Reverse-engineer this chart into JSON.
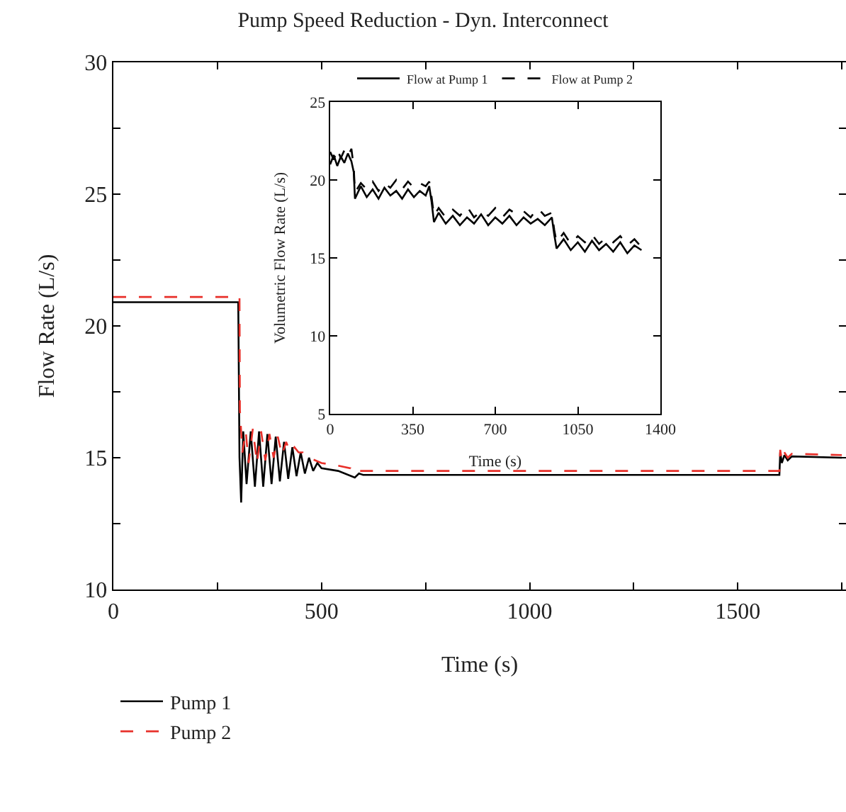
{
  "chart_data": [
    {
      "type": "line",
      "title": "Pump Speed Reduction - Dyn. Interconnect",
      "xlabel": "Time (s)",
      "ylabel": "Flow Rate (L/s)",
      "xlim": [
        0,
        1760
      ],
      "ylim": [
        10,
        30
      ],
      "xticks": [
        0,
        {
          "value": 250,
          "label": null
        },
        500,
        {
          "value": 750,
          "label": null
        },
        1000,
        {
          "value": 1250,
          "label": null
        },
        1500,
        {
          "value": 1750,
          "label": null
        }
      ],
      "yticks": [
        10,
        {
          "value": 12.5,
          "label": null
        },
        15,
        {
          "value": 17.5,
          "label": null
        },
        20,
        {
          "value": 22.5,
          "label": null
        },
        25,
        {
          "value": 27.5,
          "label": null
        },
        30
      ],
      "legend": "bottom left",
      "series": [
        {
          "name": "Pump 1",
          "color": "#000000",
          "line_style": "solid",
          "x": [
            0,
            300,
            303,
            307,
            312,
            320,
            330,
            340,
            350,
            360,
            370,
            380,
            390,
            400,
            410,
            420,
            430,
            440,
            450,
            460,
            470,
            480,
            490,
            500,
            540,
            580,
            590,
            600,
            1600,
            1602,
            1606,
            1612,
            1620,
            1630,
            1750
          ],
          "values": [
            20.9,
            20.9,
            15.0,
            13.3,
            16.0,
            14.0,
            16.0,
            13.9,
            16.0,
            13.9,
            15.9,
            14.0,
            15.8,
            14.1,
            15.6,
            14.2,
            15.4,
            14.3,
            15.2,
            14.4,
            15.0,
            14.5,
            14.8,
            14.6,
            14.5,
            14.25,
            14.4,
            14.35,
            14.35,
            15.2,
            14.8,
            15.1,
            14.9,
            15.05,
            15.0
          ]
        },
        {
          "name": "Pump 2",
          "color": "#e8302a",
          "line_style": "dashed",
          "x": [
            0,
            303,
            304,
            310,
            318,
            325,
            335,
            345,
            355,
            365,
            375,
            385,
            395,
            405,
            415,
            425,
            435,
            445,
            455,
            470,
            500,
            540,
            570,
            580,
            590,
            1600,
            1602,
            1606,
            1612,
            1620,
            1630,
            1750
          ],
          "values": [
            21.1,
            21.1,
            16.8,
            15.2,
            16.0,
            14.8,
            16.1,
            14.8,
            16.0,
            14.9,
            15.9,
            15.0,
            15.8,
            15.1,
            15.6,
            15.2,
            15.4,
            15.2,
            15.2,
            15.0,
            14.8,
            14.7,
            14.6,
            14.4,
            14.5,
            14.5,
            15.3,
            14.9,
            15.2,
            15.0,
            15.15,
            15.1
          ]
        }
      ]
    },
    {
      "type": "line",
      "xlabel": "Time (s)",
      "ylabel": "Volumetric Flow Rate (L/s)",
      "xlim": [
        0,
        1400
      ],
      "ylim": [
        5,
        25
      ],
      "xticks": [
        0,
        350,
        700,
        1050,
        1400
      ],
      "yticks": [
        5,
        10,
        15,
        20,
        25
      ],
      "legend": "top",
      "series": [
        {
          "name": "Flow at Pump 1",
          "color": "#000000",
          "line_style": "solid",
          "x": [
            0,
            15,
            30,
            45,
            60,
            75,
            90,
            100,
            105,
            130,
            155,
            180,
            205,
            230,
            255,
            280,
            305,
            330,
            355,
            380,
            405,
            420,
            430,
            440,
            460,
            490,
            520,
            550,
            580,
            610,
            640,
            670,
            700,
            730,
            760,
            790,
            820,
            850,
            880,
            910,
            940,
            950,
            960,
            990,
            1020,
            1050,
            1080,
            1110,
            1140,
            1170,
            1200,
            1230,
            1260,
            1290,
            1320
          ],
          "values": [
            21.0,
            21.6,
            20.9,
            21.5,
            21.1,
            21.7,
            21.2,
            20.5,
            18.8,
            19.6,
            18.9,
            19.4,
            18.8,
            19.5,
            19.0,
            19.3,
            18.8,
            19.4,
            18.9,
            19.3,
            19.0,
            19.6,
            18.6,
            17.3,
            17.9,
            17.2,
            17.7,
            17.1,
            17.6,
            17.2,
            17.8,
            17.1,
            17.6,
            17.2,
            17.7,
            17.1,
            17.6,
            17.2,
            17.5,
            17.1,
            17.6,
            16.5,
            15.6,
            16.2,
            15.5,
            16.0,
            15.4,
            16.1,
            15.5,
            15.9,
            15.4,
            16.0,
            15.3,
            15.8,
            15.5
          ]
        },
        {
          "name": "Flow at Pump 2",
          "color": "#000000",
          "line_style": "dashed",
          "x": [
            0,
            15,
            30,
            45,
            60,
            75,
            90,
            100,
            105,
            130,
            155,
            180,
            205,
            230,
            255,
            280,
            305,
            330,
            355,
            380,
            405,
            420,
            430,
            440,
            460,
            490,
            520,
            550,
            580,
            610,
            640,
            670,
            700,
            730,
            760,
            790,
            820,
            850,
            880,
            910,
            940,
            950,
            960,
            990,
            1020,
            1050,
            1080,
            1110,
            1140,
            1170,
            1200,
            1230,
            1260,
            1290,
            1320
          ],
          "values": [
            21.8,
            21.3,
            22.0,
            21.4,
            21.9,
            21.5,
            22.0,
            20.8,
            19.2,
            19.8,
            19.4,
            19.9,
            19.3,
            19.8,
            19.5,
            20.0,
            19.4,
            19.9,
            19.5,
            19.8,
            19.6,
            19.9,
            18.9,
            17.7,
            18.2,
            17.6,
            18.1,
            17.7,
            18.3,
            17.6,
            18.0,
            17.7,
            18.2,
            17.6,
            18.1,
            17.8,
            18.0,
            17.6,
            18.2,
            17.7,
            17.9,
            16.8,
            16.0,
            16.6,
            15.9,
            16.4,
            16.0,
            16.5,
            15.9,
            16.3,
            16.0,
            16.4,
            15.8,
            16.2,
            15.7
          ]
        }
      ]
    }
  ]
}
